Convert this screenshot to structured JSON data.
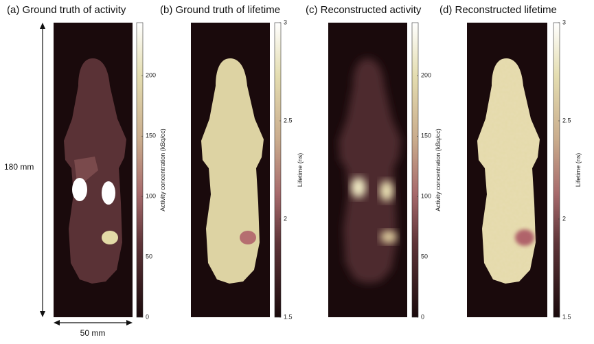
{
  "panels": [
    {
      "title": "(a) Ground truth of activity",
      "colorbar": {
        "label": "Activity concentration (kBq/cc)",
        "lim": [
          0,
          244
        ],
        "ticks": [
          0,
          50,
          100,
          150,
          200
        ]
      }
    },
    {
      "title": "(b) Ground truth of lifetime",
      "colorbar": {
        "label": "Lifetime (ns)",
        "lim": [
          1.5,
          3
        ],
        "ticks": [
          1.5,
          2,
          2.5,
          3
        ]
      }
    },
    {
      "title": "(c) Reconstructed activity",
      "colorbar": {
        "label": "Activity concentration (kBq/cc)",
        "lim": [
          0,
          244
        ],
        "ticks": [
          0,
          50,
          100,
          150,
          200
        ]
      }
    },
    {
      "title": "(d) Reconstructed lifetime",
      "colorbar": {
        "label": "Lifetime (ns)",
        "lim": [
          1.5,
          3
        ],
        "ticks": [
          1.5,
          2,
          2.5,
          3
        ]
      }
    }
  ],
  "scale": {
    "height": "180 mm",
    "width": "50 mm"
  }
}
